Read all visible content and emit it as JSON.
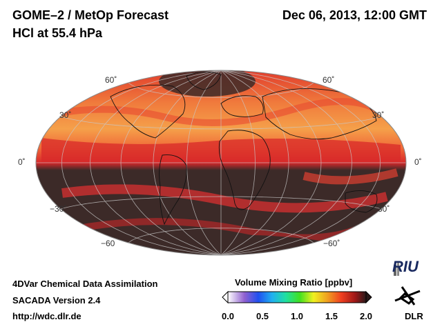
{
  "header": {
    "title": "GOME–2 / MetOp Forecast",
    "subtitle": "HCl at 55.4 hPa",
    "datetime": "Dec 06, 2013, 12:00 GMT"
  },
  "map": {
    "projection": "Hammer-Aitoff",
    "latitude_labels": [
      "60˚",
      "30˚",
      "0˚",
      "−30˚",
      "−60"
    ],
    "right_latitude_labels": [
      "60˚",
      "30˚",
      "0˚",
      "−30˚",
      "−60˚"
    ]
  },
  "footer": {
    "line1": "4DVar Chemical Data Assimilation",
    "line2": "SACADA Version 2.4",
    "line3": "http://wdc.dlr.de"
  },
  "colorbar": {
    "title": "Volume Mixing Ratio [ppbv]",
    "ticks": [
      "0.0",
      "0.5",
      "1.0",
      "1.5",
      "2.0"
    ],
    "min": 0.0,
    "max": 2.0
  },
  "logos": {
    "riu": "RIU",
    "dlr": "DLR"
  },
  "colors": {
    "high": "#3c2a28",
    "mid_red": "#e8282a",
    "orange": "#f59a45",
    "yellow": "#ffd040",
    "grid": "#c8c8c8",
    "coast": "#111111"
  }
}
